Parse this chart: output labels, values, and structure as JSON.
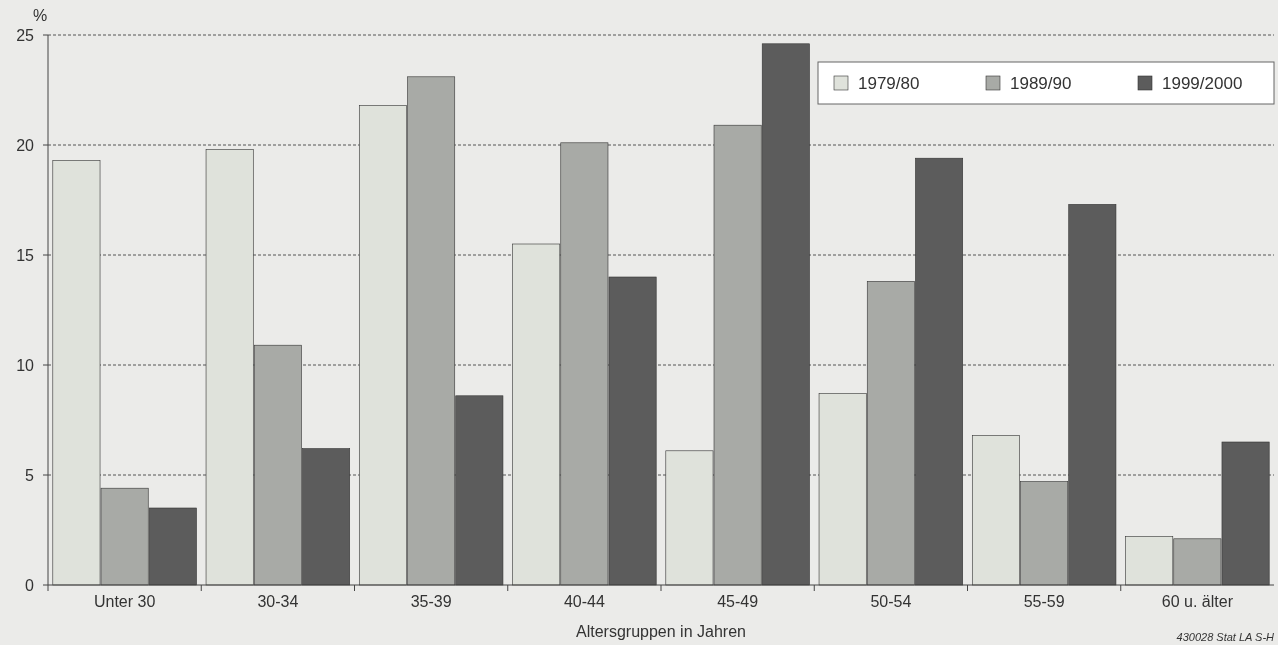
{
  "chart_data": {
    "type": "bar",
    "ylabel": "%",
    "xlabel": "Altersgruppen in Jahren",
    "categories": [
      "Unter 30",
      "30-34",
      "35-39",
      "40-44",
      "45-49",
      "50-54",
      "55-59",
      "60 u. älter"
    ],
    "series": [
      {
        "name": "1979/80",
        "color": "#dfe2db",
        "values": [
          19.3,
          19.8,
          21.8,
          15.5,
          6.1,
          8.7,
          6.8,
          2.2
        ]
      },
      {
        "name": "1989/90",
        "color": "#a8aaa6",
        "values": [
          4.4,
          10.9,
          23.1,
          20.1,
          20.9,
          13.8,
          4.7,
          2.1
        ]
      },
      {
        "name": "1999/2000",
        "color": "#5c5c5c",
        "values": [
          3.5,
          6.2,
          8.6,
          14.0,
          24.6,
          19.4,
          17.3,
          6.5
        ]
      }
    ],
    "ylim": [
      0,
      25
    ],
    "yticks": [
      0,
      5,
      10,
      15,
      20,
      25
    ],
    "grid": "y",
    "legend": "top right",
    "annotations": [
      "430028 Stat LA S-H"
    ]
  }
}
